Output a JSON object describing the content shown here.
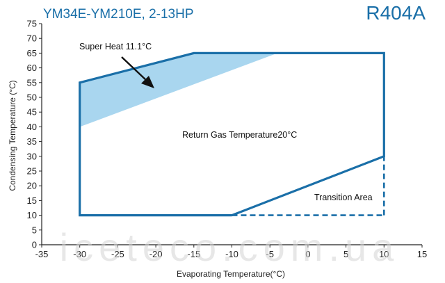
{
  "chart_data": {
    "type": "line",
    "title": "YM34E-YM210E, 2-13HP",
    "refrigerant": "R404A",
    "xlabel": "Evaporating Temperature(°C)",
    "ylabel": "Condensing Temperature (°C)",
    "xlim": [
      -35,
      15
    ],
    "ylim": [
      0,
      75
    ],
    "xticks": [
      -35,
      -30,
      -25,
      -20,
      -15,
      -10,
      -5,
      0,
      5,
      10,
      15
    ],
    "yticks": [
      0,
      5,
      10,
      15,
      20,
      25,
      30,
      35,
      40,
      45,
      50,
      55,
      60,
      65,
      70,
      75
    ],
    "grid": false,
    "envelope": {
      "name": "Return Gas Temperature20°C",
      "points": [
        [
          -30,
          10
        ],
        [
          -30,
          55
        ],
        [
          -15,
          65
        ],
        [
          10,
          65
        ],
        [
          10,
          30
        ],
        [
          -10,
          10
        ],
        [
          -30,
          10
        ]
      ]
    },
    "superheat_region": {
      "name": "Super Heat 11.1°C",
      "points": [
        [
          -30,
          40
        ],
        [
          -30,
          55
        ],
        [
          -15,
          65
        ],
        [
          -4,
          65
        ]
      ]
    },
    "transition_area": {
      "name": "Transition Area",
      "points": [
        [
          -10,
          10
        ],
        [
          10,
          10
        ],
        [
          10,
          30
        ]
      ]
    },
    "colors": {
      "envelope": "#1a6fa8",
      "superheat_fill": "#a9d6ef",
      "title": "#1a6fa8",
      "arrow": "#111111"
    }
  },
  "watermark": "iceteco.com.ua"
}
